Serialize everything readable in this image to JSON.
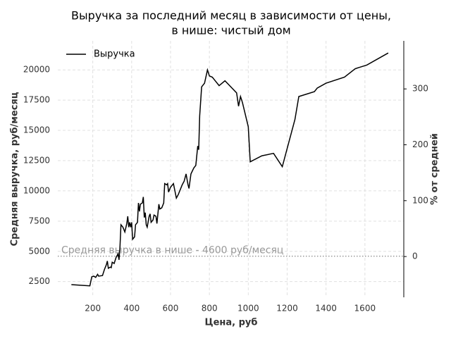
{
  "chart_data": {
    "type": "line",
    "title": [
      "Выручка за последний месяц в зависимости от цены,",
      "в нише: чистый дом"
    ],
    "xlabel": "Цена, руб",
    "ylabel": "Средняя выручка, руб/месяц",
    "y2label": "% от средней",
    "x": [
      90,
      185,
      195,
      205,
      215,
      225,
      230,
      250,
      260,
      270,
      275,
      280,
      290,
      295,
      300,
      310,
      320,
      330,
      335,
      340,
      345,
      355,
      365,
      375,
      380,
      385,
      390,
      395,
      400,
      405,
      415,
      420,
      430,
      435,
      440,
      445,
      455,
      460,
      465,
      470,
      475,
      480,
      490,
      495,
      500,
      510,
      515,
      525,
      530,
      540,
      545,
      555,
      565,
      570,
      580,
      585,
      590,
      600,
      615,
      620,
      630,
      640,
      660,
      670,
      680,
      690,
      695,
      705,
      720,
      730,
      740,
      745,
      750,
      760,
      775,
      790,
      800,
      815,
      830,
      850,
      880,
      940,
      950,
      960,
      970,
      1000,
      1010,
      1070,
      1130,
      1175,
      1240,
      1260,
      1340,
      1355,
      1400,
      1495,
      1550,
      1610,
      1720
    ],
    "series": [
      {
        "name": "Выручка",
        "color": "#000000",
        "values": [
          2250,
          2150,
          2900,
          2950,
          2850,
          3100,
          2950,
          3000,
          3500,
          3900,
          4200,
          3600,
          3700,
          3650,
          4100,
          4000,
          4500,
          4800,
          4300,
          5400,
          7200,
          7000,
          6600,
          7300,
          7900,
          7000,
          7400,
          7000,
          7400,
          6000,
          6200,
          7200,
          7400,
          9000,
          8300,
          8900,
          9000,
          9500,
          7800,
          8200,
          7200,
          7000,
          7900,
          8100,
          7400,
          7600,
          8000,
          7900,
          7300,
          8900,
          8500,
          8600,
          9000,
          10600,
          10500,
          10600,
          9900,
          10300,
          10600,
          10200,
          9400,
          9700,
          10500,
          10800,
          11400,
          10500,
          10200,
          11400,
          11900,
          12100,
          13700,
          13400,
          16200,
          18600,
          18900,
          20000,
          19500,
          19400,
          19100,
          18700,
          19100,
          18100,
          17000,
          17800,
          17300,
          15300,
          12400,
          12900,
          13100,
          12000,
          15900,
          17800,
          18200,
          18500,
          18900,
          19400,
          20100,
          20400,
          21400
        ]
      }
    ],
    "reference_line": {
      "value": 4600,
      "label": "Средняя выручка в нише - 4600 руб/месяц",
      "color": "#999999"
    },
    "xlim": [
      20,
      1800
    ],
    "xticks": [
      200,
      400,
      600,
      800,
      1000,
      1200,
      1400,
      1600
    ],
    "ylim": [
      1200,
      22400
    ],
    "yticks": [
      2500,
      5000,
      7500,
      10000,
      12500,
      15000,
      17500,
      20000
    ],
    "y2lim": [
      -73,
      386
    ],
    "y2ticks": [
      0,
      100,
      200,
      300
    ],
    "grid": true,
    "legend": "upper left"
  }
}
